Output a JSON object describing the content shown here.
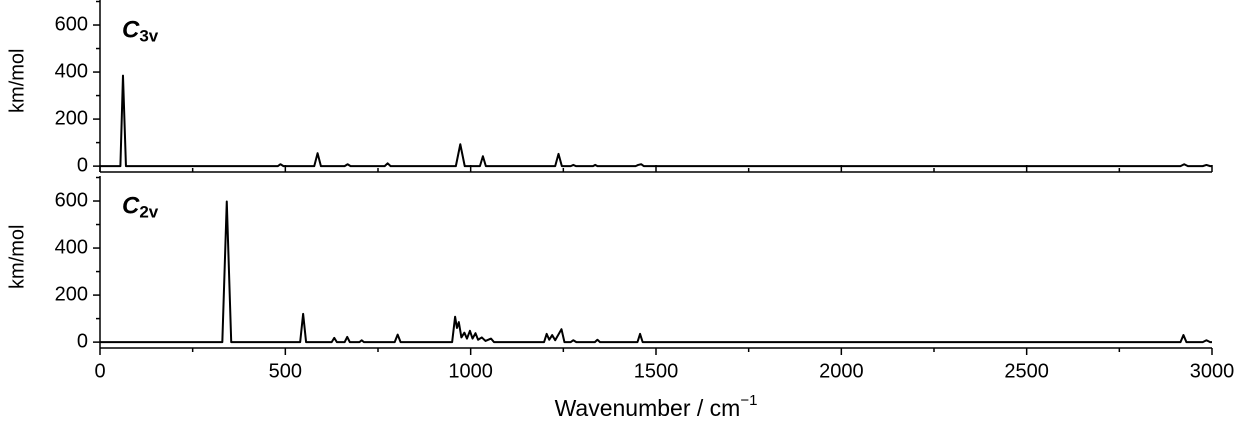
{
  "chart_data": [
    {
      "type": "line",
      "label": "C",
      "label_sub": "3v",
      "ylabel": "km/mol",
      "xlim": [
        0,
        3000
      ],
      "xticks": [
        0,
        500,
        1000,
        1500,
        2000,
        2500,
        3000
      ],
      "xminor": [
        250,
        750,
        1250,
        1750,
        2250,
        2750
      ],
      "ylim": [
        -25,
        700
      ],
      "yticks": [
        0,
        200,
        400,
        600
      ],
      "yminor": [
        100,
        300,
        500,
        700
      ],
      "color": "#000000",
      "x": [
        0,
        55,
        62,
        70,
        480,
        487,
        495,
        578,
        587,
        596,
        660,
        668,
        676,
        768,
        776,
        784,
        960,
        972,
        984,
        1025,
        1033,
        1041,
        1228,
        1237,
        1246,
        1270,
        1277,
        1284,
        1330,
        1336,
        1342,
        1445,
        1452,
        1460,
        1467,
        2915,
        2925,
        2935,
        2975,
        2985,
        2995,
        3000
      ],
      "values": [
        0,
        0,
        385,
        0,
        0,
        8,
        0,
        0,
        55,
        0,
        0,
        8,
        0,
        0,
        12,
        0,
        0,
        93,
        0,
        0,
        42,
        0,
        0,
        52,
        0,
        0,
        5,
        0,
        0,
        5,
        0,
        0,
        5,
        8,
        0,
        0,
        8,
        0,
        0,
        5,
        0,
        0
      ]
    },
    {
      "type": "line",
      "label": "C",
      "label_sub": "2v",
      "ylabel": "km/mol",
      "xlabel": "Wavenumber / cm",
      "xlabel_sup": "−1",
      "xlim": [
        0,
        3000
      ],
      "xticks": [
        0,
        500,
        1000,
        1500,
        2000,
        2500,
        3000
      ],
      "xminor": [
        250,
        750,
        1250,
        1750,
        2250,
        2750
      ],
      "ylim": [
        -25,
        700
      ],
      "yticks": [
        0,
        200,
        400,
        600
      ],
      "yminor": [
        100,
        300,
        500,
        700
      ],
      "color": "#000000",
      "x": [
        0,
        330,
        342,
        354,
        540,
        548,
        556,
        625,
        632,
        639,
        660,
        667,
        674,
        700,
        706,
        712,
        795,
        803,
        811,
        950,
        958,
        963,
        968,
        975,
        983,
        990,
        998,
        1005,
        1013,
        1020,
        1030,
        1040,
        1055,
        1063,
        1198,
        1205,
        1212,
        1220,
        1228,
        1245,
        1253,
        1270,
        1277,
        1285,
        1335,
        1342,
        1349,
        1450,
        1457,
        1464,
        2915,
        2923,
        2931,
        2975,
        2985,
        2995,
        3000
      ],
      "values": [
        0,
        0,
        598,
        0,
        0,
        120,
        0,
        0,
        18,
        0,
        0,
        22,
        0,
        0,
        8,
        0,
        0,
        32,
        0,
        0,
        108,
        60,
        85,
        20,
        40,
        15,
        48,
        15,
        38,
        10,
        20,
        5,
        15,
        0,
        0,
        35,
        10,
        30,
        8,
        55,
        0,
        0,
        8,
        0,
        0,
        10,
        0,
        0,
        35,
        0,
        0,
        30,
        0,
        0,
        8,
        0,
        0
      ]
    }
  ]
}
